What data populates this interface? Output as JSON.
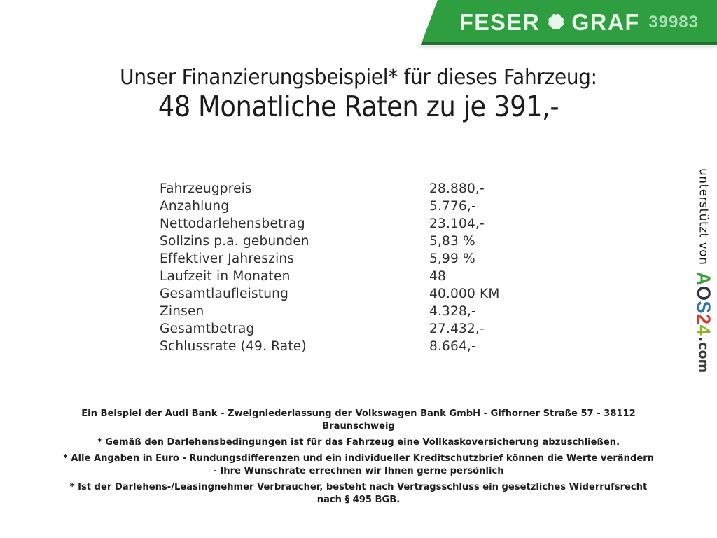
{
  "banner": {
    "brand_left": "FESER",
    "brand_right": "GRAF",
    "clover_icon": "four-leaf-clover",
    "page_number": "39983",
    "colors": {
      "background": "#2f9e41",
      "bottom_edge": "#1e7030",
      "brand_text": "#e8f7ea",
      "number_text": "#a9ddb4"
    }
  },
  "title": {
    "line1": "Unser Finanzierungsbeispiel* für dieses Fahrzeug:",
    "line2": "48 Monatliche Raten zu je 391,-"
  },
  "financing_table": {
    "rows": [
      {
        "label": "Fahrzeugpreis",
        "value": "28.880,-"
      },
      {
        "label": "Anzahlung",
        "value": "5.776,-"
      },
      {
        "label": "Nettodarlehensbetrag",
        "value": "23.104,-"
      },
      {
        "label": "Sollzins p.a. gebunden",
        "value": "5,83 %"
      },
      {
        "label": "Effektiver Jahreszins",
        "value": "5,99 %"
      },
      {
        "label": "Laufzeit in Monaten",
        "value": "48"
      },
      {
        "label": "Gesamtlaufleistung",
        "value": "40.000 KM"
      },
      {
        "label": "Zinsen",
        "value": "4.328,-"
      },
      {
        "label": "Gesamtbetrag",
        "value": "27.432,-"
      },
      {
        "label": "Schlussrate (49. Rate)",
        "value": "8.664,-"
      }
    ]
  },
  "vertical_strip": {
    "prefix": "unterstützt von",
    "brand_letters": [
      {
        "char": "A",
        "color": "#3f9c3a"
      },
      {
        "char": "O",
        "color": "#2d3440"
      },
      {
        "char": "S",
        "color": "#2f6fb7"
      },
      {
        "char": "2",
        "color": "#d93a2f"
      },
      {
        "char": "4",
        "color": "#8db32a"
      }
    ],
    "suffix": ".com"
  },
  "footer": {
    "groups": [
      {
        "lines": [
          "Ein Beispiel der Audi Bank - Zweigniederlassung der Volkswagen Bank GmbH - Gifhorner Straße 57 - 38112",
          "Braunschweig"
        ]
      },
      {
        "lines": [
          "* Gemäß den Darlehensbedingungen ist für das Fahrzeug eine Vollkaskoversicherung abzuschließen."
        ]
      },
      {
        "lines": [
          "* Alle Angaben in Euro - Rundungsdifferenzen und ein individueller Kreditschutzbrief können die Werte verändern",
          "- Ihre Wunschrate errechnen wir Ihnen gerne persönlich"
        ]
      },
      {
        "lines": [
          "* Ist der Darlehens-/Leasingnehmer Verbraucher, besteht nach Vertragsschluss ein gesetzliches Widerrufsrecht",
          "nach § 495 BGB."
        ]
      }
    ]
  }
}
